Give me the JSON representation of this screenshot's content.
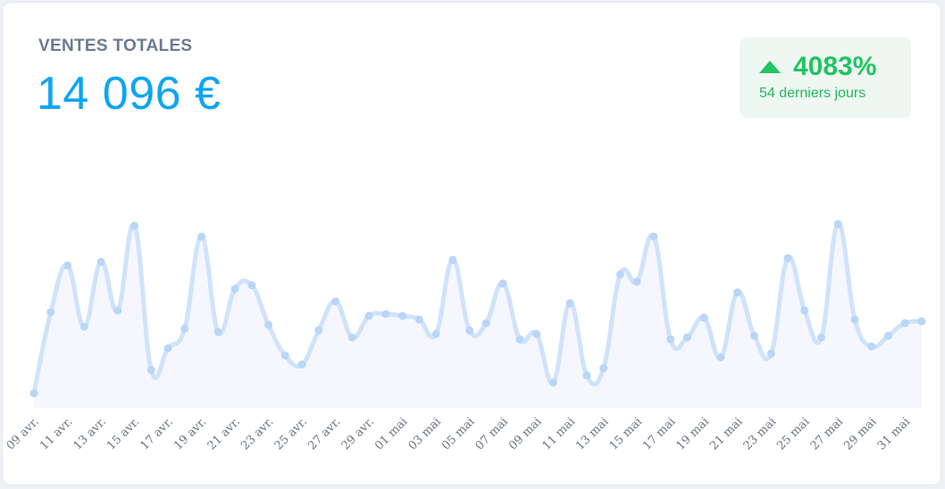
{
  "header": {
    "title": "VENTES TOTALES",
    "total": "14 096 €"
  },
  "badge": {
    "percent": "4083%",
    "period": "54 derniers jours",
    "trend_icon": "triangle-up-icon",
    "color": "#22c463"
  },
  "colors": {
    "line": "#cfe3fb",
    "marker": "#b9d6f8",
    "fill": "#f6f7fe",
    "axis_text": "#6b7388",
    "accent": "#0ea5f2"
  },
  "chart_data": {
    "type": "line",
    "title": "",
    "xlabel": "",
    "ylabel": "",
    "grid": false,
    "legend": "none",
    "ylim": [
      0,
      100
    ],
    "tick_labels": [
      "09 avr.",
      "11 avr.",
      "13 avr.",
      "15 avr.",
      "17 avr.",
      "19 avr.",
      "21 avr.",
      "23 avr.",
      "25 avr.",
      "27 avr.",
      "29 avr.",
      "01 mai",
      "03 mai",
      "05 mai",
      "07 mai",
      "09 mai",
      "11 mai",
      "13 mai",
      "15 mai",
      "17 mai",
      "19 mai",
      "21 mai",
      "23 mai",
      "25 mai",
      "27 mai",
      "29 mai",
      "31 mai"
    ],
    "values": [
      7,
      52,
      78,
      44,
      80,
      53,
      100,
      20,
      32,
      43,
      94,
      41,
      65,
      67,
      45,
      28,
      23,
      42,
      58,
      38,
      50,
      51,
      50,
      48,
      40,
      81,
      42,
      46,
      68,
      37,
      40,
      13,
      57,
      17,
      21,
      73,
      69,
      94,
      37,
      38,
      49,
      27,
      63,
      39,
      29,
      82,
      53,
      38,
      101,
      48,
      33,
      39,
      46,
      47
    ]
  }
}
